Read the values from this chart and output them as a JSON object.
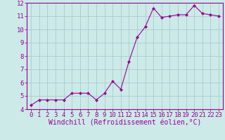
{
  "x": [
    0,
    1,
    2,
    3,
    4,
    5,
    6,
    7,
    8,
    9,
    10,
    11,
    12,
    13,
    14,
    15,
    16,
    17,
    18,
    19,
    20,
    21,
    22,
    23
  ],
  "y": [
    4.3,
    4.7,
    4.7,
    4.7,
    4.7,
    5.2,
    5.2,
    5.2,
    4.7,
    5.2,
    6.1,
    5.5,
    7.6,
    9.4,
    10.2,
    11.6,
    10.9,
    11.0,
    11.1,
    11.1,
    11.8,
    11.2,
    11.1,
    11.0
  ],
  "line_color": "#990099",
  "marker": "D",
  "marker_size": 2,
  "bg_color": "#cceae7",
  "grid_color": "#aacccc",
  "xlabel": "Windchill (Refroidissement éolien,°C)",
  "ylim": [
    4,
    12
  ],
  "xlim_min": -0.5,
  "xlim_max": 23.5,
  "yticks": [
    4,
    5,
    6,
    7,
    8,
    9,
    10,
    11,
    12
  ],
  "xticks": [
    0,
    1,
    2,
    3,
    4,
    5,
    6,
    7,
    8,
    9,
    10,
    11,
    12,
    13,
    14,
    15,
    16,
    17,
    18,
    19,
    20,
    21,
    22,
    23
  ],
  "tick_color": "#990099",
  "label_color": "#990099",
  "spine_color": "#990099",
  "font_size": 6.5,
  "xlabel_font_size": 7
}
